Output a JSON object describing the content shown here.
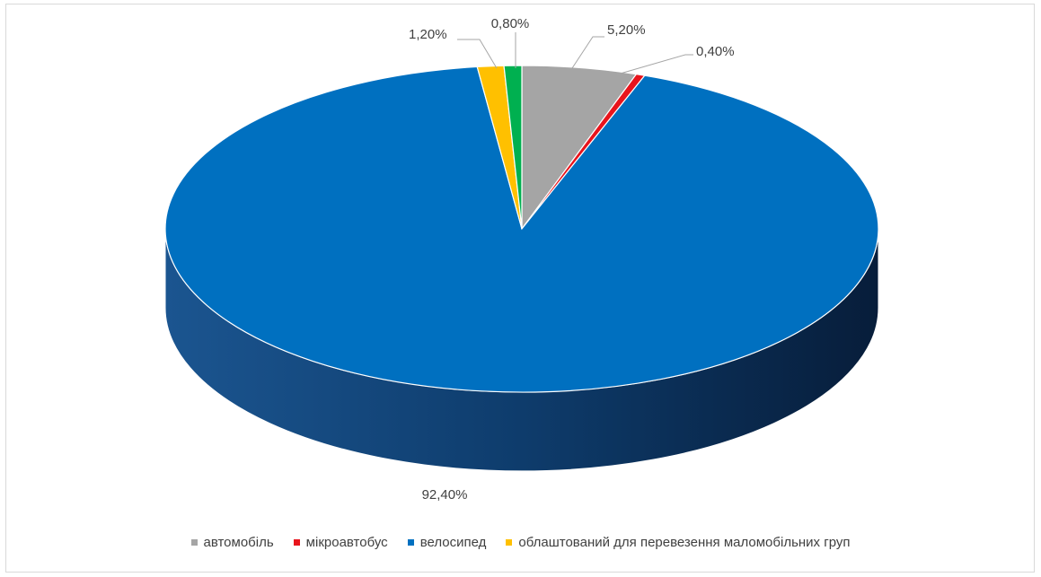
{
  "chart_data": {
    "type": "pie",
    "variant": "3d",
    "title": "",
    "categories": [
      "автомобіль",
      "мікроавтобус",
      "велосипед",
      "облаштований для перевезення маломобільних груп",
      ""
    ],
    "values": [
      5.2,
      0.4,
      92.4,
      1.2,
      0.8
    ],
    "data_labels": [
      "5,20%",
      "0,40%",
      "92,40%",
      "1,20%",
      "0,80%"
    ],
    "colors": [
      "#a5a5a5",
      "#e8141c",
      "#0070c0",
      "#ffc000",
      "#00b050"
    ],
    "legend": {
      "placement": "bottom",
      "entries": [
        "автомобіль",
        "мікроавтобус",
        "велосипед",
        "облаштований для перевезення маломобільних груп"
      ]
    }
  }
}
